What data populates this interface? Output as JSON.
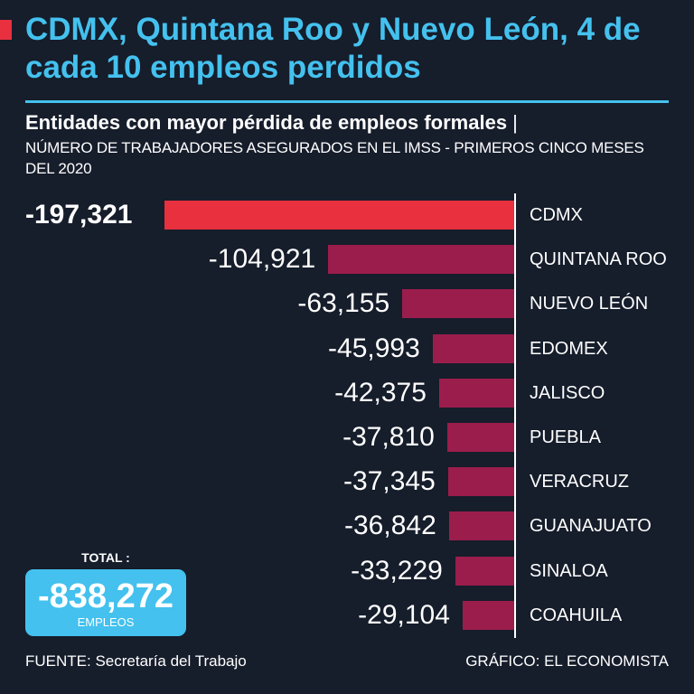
{
  "header": {
    "title": "CDMX, Quintana Roo y Nuevo León, 4 de cada 10 empleos perdidos",
    "subtitle": "Entidades con mayor pérdida de empleos formales",
    "subtitle_separator": "|",
    "subtitle_detail": "NÚMERO DE TRABAJADORES ASEGURADOS EN EL IMSS - PRIMEROS CINCO MESES DEL 2020"
  },
  "colors": {
    "accent_red": "#e8303f",
    "bar": "#9b1d4c",
    "highlight": "#44c1ee",
    "background": "#161d2b"
  },
  "chart_data": {
    "type": "bar",
    "orientation": "horizontal",
    "title": "Entidades con mayor pérdida de empleos formales",
    "categories": [
      "CDMX",
      "QUINTANA ROO",
      "NUEVO LEÓN",
      "EDOMEX",
      "JALISCO",
      "PUEBLA",
      "VERACRUZ",
      "GUANAJUATO",
      "SINALOA",
      "COAHUILA"
    ],
    "values": [
      -197321,
      -104921,
      -63155,
      -45993,
      -42375,
      -37810,
      -37345,
      -36842,
      -33229,
      -29104
    ],
    "value_labels": [
      "-197,321",
      "-104,921",
      "-63,155",
      "-45,993",
      "-42,375",
      "-37,810",
      "-37,345",
      "-36,842",
      "-33,229",
      "-29,104"
    ],
    "highlight_index": 0,
    "xlabel": "",
    "ylabel": "",
    "xlim": [
      -197321,
      0
    ]
  },
  "total": {
    "caption": "TOTAL :",
    "value": "-838,272",
    "unit": "EMPLEOS"
  },
  "footer": {
    "source": "FUENTE: Secretaría del Trabajo",
    "credit": "GRÁFICO: EL ECONOMISTA"
  }
}
